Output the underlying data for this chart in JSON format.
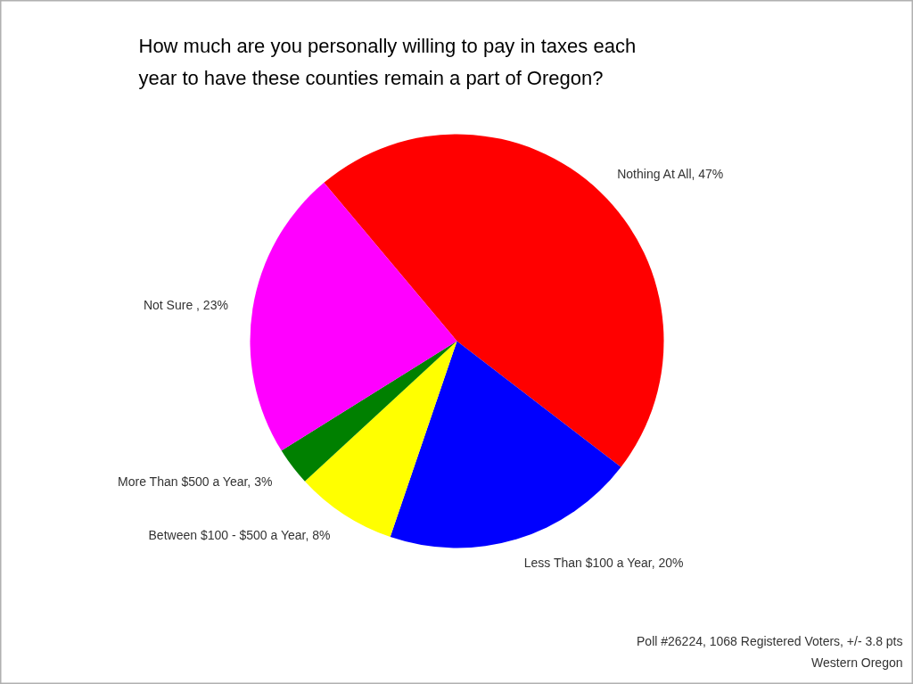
{
  "chart_data": {
    "type": "pie",
    "title": "How much are you personally willing to pay in taxes each year to have these counties remain a part of Oregon?",
    "categories": [
      "Nothing At All",
      "Less Than $100 a Year",
      "Between $100 - $500 a Year",
      "More Than $500 a Year",
      "Not Sure "
    ],
    "values": [
      47,
      20,
      8,
      3,
      23
    ],
    "value_labels": [
      "47%",
      "20%",
      "8%",
      "3%",
      "23%"
    ],
    "colors": [
      "#ff0000",
      "#0000ff",
      "#ffff00",
      "#008000",
      "#ff00ff"
    ],
    "annotations": [
      "Poll #26224, 1068 Registered Voters, +/- 3.8 pts",
      "Western Oregon"
    ]
  }
}
